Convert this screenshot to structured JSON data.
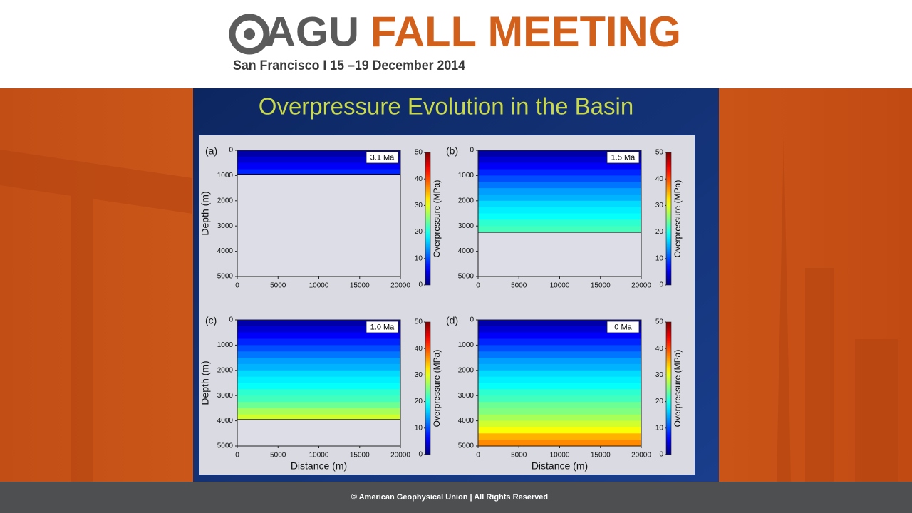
{
  "header": {
    "logo": "AGU",
    "meeting": "FALL MEETING",
    "subtitle": "San Francisco  I  15 –19 December 2014"
  },
  "slide": {
    "title": "Overpressure Evolution in the Basin"
  },
  "chart_data": [
    {
      "type": "heatmap",
      "panel_label": "(a)",
      "age_label": "3.1 Ma",
      "ylabel": "Depth (m)",
      "colorbar_label": "Overpressure (MPa)",
      "xlim": [
        0,
        20000
      ],
      "xticks": [
        0,
        5000,
        10000,
        15000,
        20000
      ],
      "ylim": [
        5000,
        0
      ],
      "yticks": [
        0,
        1000,
        2000,
        3000,
        4000,
        5000
      ],
      "clim": [
        0,
        50
      ],
      "cticks": [
        0,
        10,
        20,
        30,
        40,
        50
      ],
      "colormap": "jet",
      "ybins": [
        0,
        250,
        500,
        750,
        950
      ],
      "values": [
        2,
        4,
        6,
        8
      ]
    },
    {
      "type": "heatmap",
      "panel_label": "(b)",
      "age_label": "1.5 Ma",
      "colorbar_label": "Overpressure (MPa)",
      "xlim": [
        0,
        20000
      ],
      "xticks": [
        0,
        5000,
        10000,
        15000,
        20000
      ],
      "ylim": [
        5000,
        0
      ],
      "yticks": [
        0,
        1000,
        2000,
        3000,
        4000,
        5000
      ],
      "clim": [
        0,
        50
      ],
      "cticks": [
        0,
        10,
        20,
        30,
        40,
        50
      ],
      "colormap": "jet",
      "ybins": [
        0,
        250,
        500,
        750,
        1000,
        1250,
        1500,
        1750,
        2000,
        2250,
        2500,
        2750,
        3000,
        3250
      ],
      "values": [
        2,
        4,
        6,
        8,
        10,
        12,
        14,
        15,
        17,
        18,
        19,
        21,
        22
      ]
    },
    {
      "type": "heatmap",
      "panel_label": "(c)",
      "age_label": "1.0 Ma",
      "ylabel": "Depth (m)",
      "xlabel": "Distance (m)",
      "colorbar_label": "Overpressure (MPa)",
      "xlim": [
        0,
        20000
      ],
      "xticks": [
        0,
        5000,
        10000,
        15000,
        20000
      ],
      "ylim": [
        5000,
        0
      ],
      "yticks": [
        0,
        1000,
        2000,
        3000,
        4000,
        5000
      ],
      "clim": [
        0,
        50
      ],
      "cticks": [
        0,
        10,
        20,
        30,
        40,
        50
      ],
      "colormap": "jet",
      "ybins": [
        0,
        250,
        500,
        750,
        1000,
        1250,
        1500,
        1750,
        2000,
        2250,
        2500,
        2750,
        3000,
        3250,
        3500,
        3750,
        3950
      ],
      "values": [
        2,
        4,
        6,
        8,
        10,
        12,
        14,
        15,
        17,
        18,
        19,
        21,
        22,
        24,
        27,
        29
      ]
    },
    {
      "type": "heatmap",
      "panel_label": "(d)",
      "age_label": "0 Ma",
      "xlabel": "Distance (m)",
      "colorbar_label": "Overpressure (MPa)",
      "xlim": [
        0,
        20000
      ],
      "xticks": [
        0,
        5000,
        10000,
        15000,
        20000
      ],
      "ylim": [
        5000,
        0
      ],
      "yticks": [
        0,
        1000,
        2000,
        3000,
        4000,
        5000
      ],
      "clim": [
        0,
        50
      ],
      "cticks": [
        0,
        10,
        20,
        30,
        40,
        50
      ],
      "colormap": "jet",
      "ybins": [
        0,
        250,
        500,
        750,
        1000,
        1250,
        1500,
        1750,
        2000,
        2250,
        2500,
        2750,
        3000,
        3250,
        3500,
        3750,
        4000,
        4250,
        4500,
        4750,
        5000
      ],
      "values": [
        2,
        4,
        6,
        8,
        10,
        12,
        14,
        15,
        17,
        18,
        19,
        21,
        22,
        24,
        25,
        27,
        29,
        31,
        35,
        37
      ]
    }
  ],
  "footer": {
    "text": "© American Geophysical Union | All Rights Reserved"
  }
}
